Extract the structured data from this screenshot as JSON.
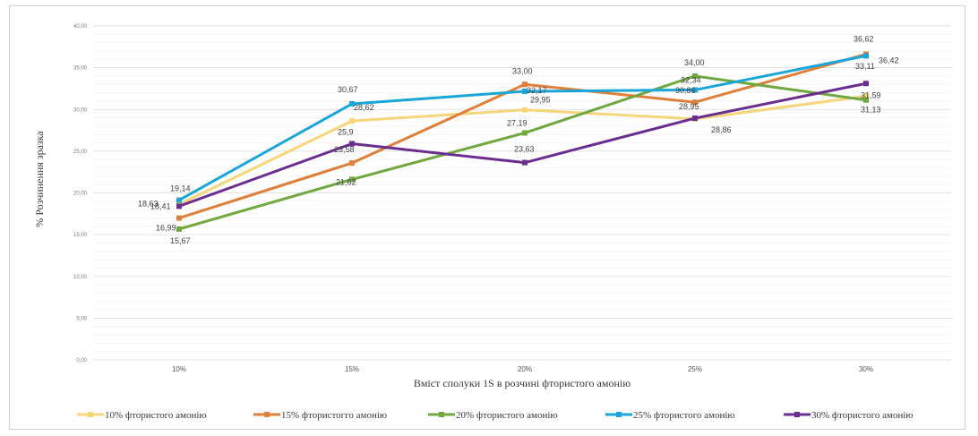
{
  "chart_data": {
    "type": "line",
    "title": "",
    "xlabel": "Вміст сполуки 1S в розчині фтористого амонію",
    "ylabel": "% Розчинення зразка",
    "categories": [
      "10%",
      "15%",
      "20%",
      "25%",
      "30%"
    ],
    "y_ticks": [
      "0,00",
      "5,00",
      "10,00",
      "15,00",
      "20,00",
      "25,00",
      "30,00",
      "35,00",
      "40,00"
    ],
    "ylim": [
      0,
      40
    ],
    "grid": true,
    "legend_position": "bottom",
    "series": [
      {
        "name": "10% фтористого амонію",
        "color": "#f5d67a",
        "values": [
          18.63,
          28.62,
          29.95,
          28.86,
          31.59
        ],
        "labels": [
          "18,63",
          "28,62",
          "29,95",
          "28,86",
          "31,59"
        ]
      },
      {
        "name": "15% фтористогго амонію",
        "color": "#e07f3a",
        "values": [
          16.99,
          23.58,
          33.0,
          30.86,
          36.62
        ],
        "labels": [
          "16,99",
          "23,58",
          "33,00",
          "30,86",
          "36,62"
        ]
      },
      {
        "name": "20% фтористого амонію",
        "color": "#6fa83e",
        "values": [
          15.67,
          21.62,
          27.19,
          34.0,
          31.13
        ],
        "labels": [
          "15,67",
          "21,62",
          "27,19",
          "34,00",
          "31,13"
        ]
      },
      {
        "name": "25% фтористого амонію",
        "color": "#1aa6d8",
        "values": [
          19.14,
          30.67,
          32.17,
          32.34,
          36.42
        ],
        "labels": [
          "19,14",
          "30,67",
          "32,17",
          "32,34",
          "36,42"
        ]
      },
      {
        "name": "30% фтористого амонію",
        "color": "#6b2d90",
        "values": [
          18.41,
          25.9,
          23.63,
          28.95,
          33.11
        ],
        "labels": [
          "18,41",
          "25,9",
          "23,63",
          "28,95",
          "33,11"
        ]
      }
    ]
  }
}
